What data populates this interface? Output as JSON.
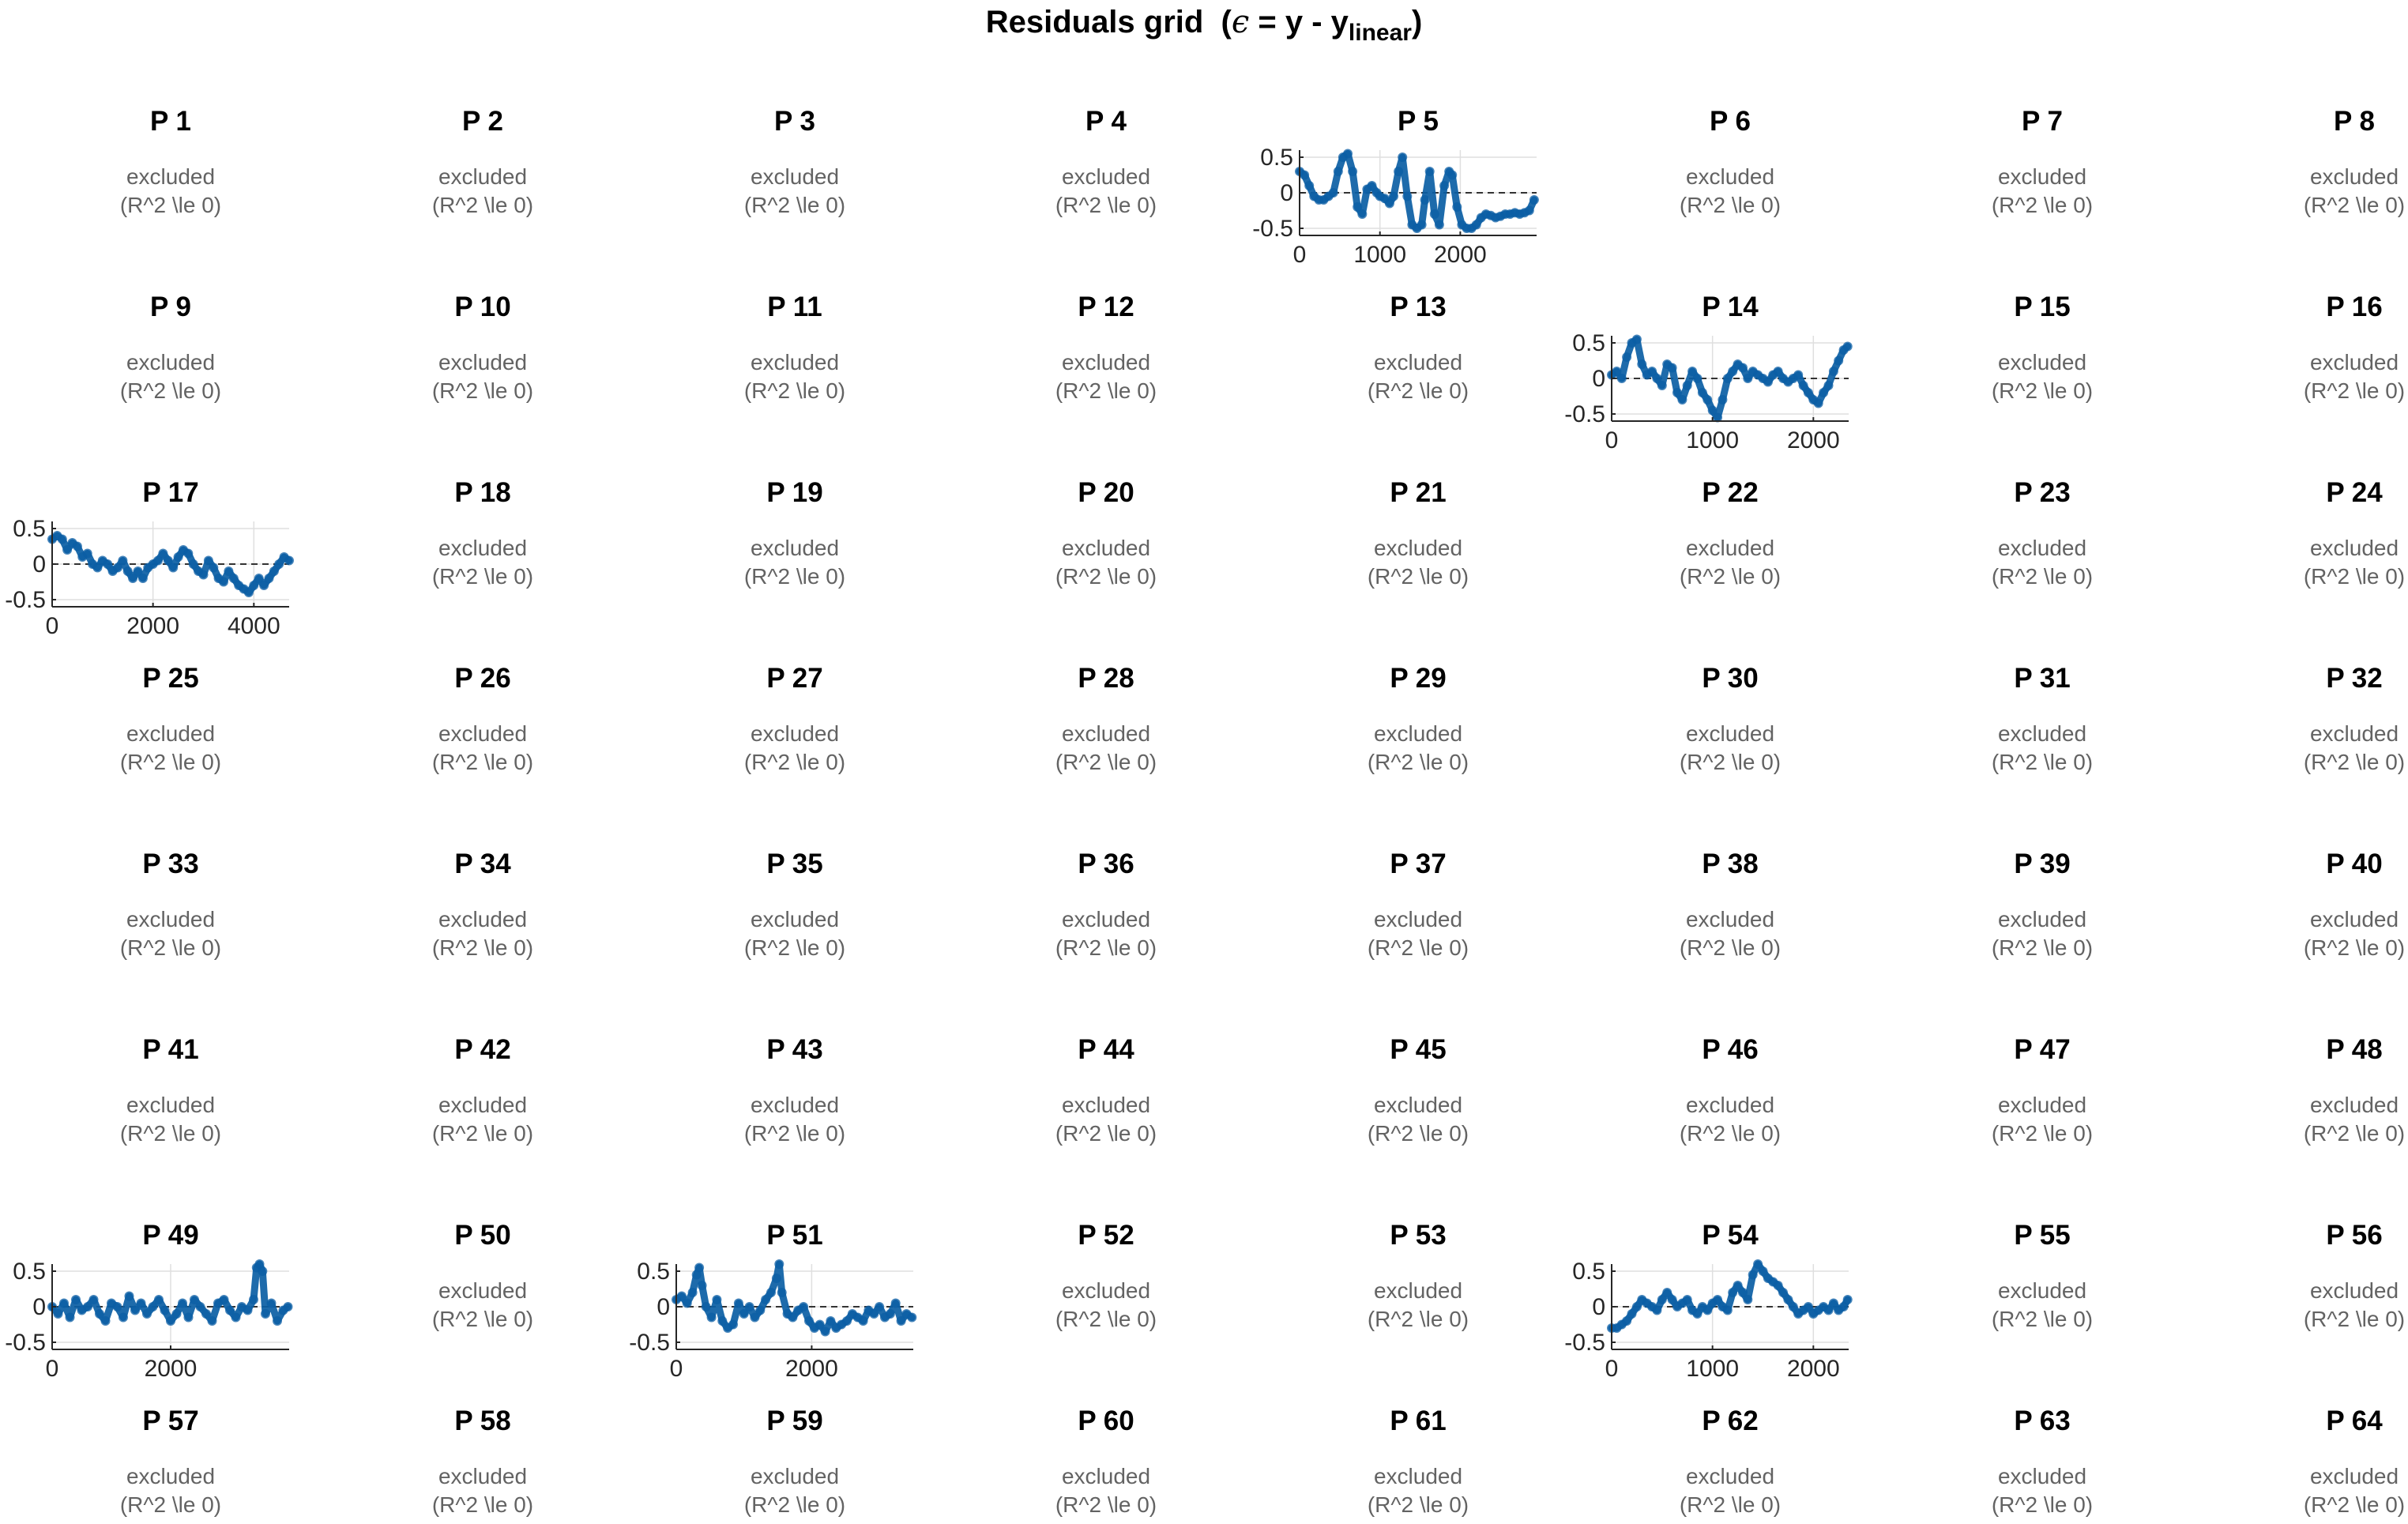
{
  "title": {
    "prefix": "Residuals grid",
    "symbol": "ϵ",
    "middle": " = y - y",
    "subscript": "linear",
    "suffix": ")"
  },
  "excluded_text": {
    "line1": "excluded",
    "line2": "(R^2 \\le 0)"
  },
  "colors": {
    "series": "#0b5ea4",
    "axis": "#262626",
    "grid": "#dfdfdf",
    "zero_line": "#333333",
    "excluded_text": "#636363"
  },
  "grid": {
    "rows": 8,
    "cols": 8
  },
  "panels": [
    {
      "label": "P 1",
      "excluded": true
    },
    {
      "label": "P 2",
      "excluded": true
    },
    {
      "label": "P 3",
      "excluded": true
    },
    {
      "label": "P 4",
      "excluded": true
    },
    {
      "label": "P 5",
      "excluded": false
    },
    {
      "label": "P 6",
      "excluded": true
    },
    {
      "label": "P 7",
      "excluded": true
    },
    {
      "label": "P 8",
      "excluded": true
    },
    {
      "label": "P 9",
      "excluded": true
    },
    {
      "label": "P 10",
      "excluded": true
    },
    {
      "label": "P 11",
      "excluded": true
    },
    {
      "label": "P 12",
      "excluded": true
    },
    {
      "label": "P 13",
      "excluded": true
    },
    {
      "label": "P 14",
      "excluded": false
    },
    {
      "label": "P 15",
      "excluded": true
    },
    {
      "label": "P 16",
      "excluded": true
    },
    {
      "label": "P 17",
      "excluded": false
    },
    {
      "label": "P 18",
      "excluded": true
    },
    {
      "label": "P 19",
      "excluded": true
    },
    {
      "label": "P 20",
      "excluded": true
    },
    {
      "label": "P 21",
      "excluded": true
    },
    {
      "label": "P 22",
      "excluded": true
    },
    {
      "label": "P 23",
      "excluded": true
    },
    {
      "label": "P 24",
      "excluded": true
    },
    {
      "label": "P 25",
      "excluded": true
    },
    {
      "label": "P 26",
      "excluded": true
    },
    {
      "label": "P 27",
      "excluded": true
    },
    {
      "label": "P 28",
      "excluded": true
    },
    {
      "label": "P 29",
      "excluded": true
    },
    {
      "label": "P 30",
      "excluded": true
    },
    {
      "label": "P 31",
      "excluded": true
    },
    {
      "label": "P 32",
      "excluded": true
    },
    {
      "label": "P 33",
      "excluded": true
    },
    {
      "label": "P 34",
      "excluded": true
    },
    {
      "label": "P 35",
      "excluded": true
    },
    {
      "label": "P 36",
      "excluded": true
    },
    {
      "label": "P 37",
      "excluded": true
    },
    {
      "label": "P 38",
      "excluded": true
    },
    {
      "label": "P 39",
      "excluded": true
    },
    {
      "label": "P 40",
      "excluded": true
    },
    {
      "label": "P 41",
      "excluded": true
    },
    {
      "label": "P 42",
      "excluded": true
    },
    {
      "label": "P 43",
      "excluded": true
    },
    {
      "label": "P 44",
      "excluded": true
    },
    {
      "label": "P 45",
      "excluded": true
    },
    {
      "label": "P 46",
      "excluded": true
    },
    {
      "label": "P 47",
      "excluded": true
    },
    {
      "label": "P 48",
      "excluded": true
    },
    {
      "label": "P 49",
      "excluded": false
    },
    {
      "label": "P 50",
      "excluded": true
    },
    {
      "label": "P 51",
      "excluded": false
    },
    {
      "label": "P 52",
      "excluded": true
    },
    {
      "label": "P 53",
      "excluded": true
    },
    {
      "label": "P 54",
      "excluded": false
    },
    {
      "label": "P 55",
      "excluded": true
    },
    {
      "label": "P 56",
      "excluded": true
    },
    {
      "label": "P 57",
      "excluded": true
    },
    {
      "label": "P 58",
      "excluded": true
    },
    {
      "label": "P 59",
      "excluded": true
    },
    {
      "label": "P 60",
      "excluded": true
    },
    {
      "label": "P 61",
      "excluded": true
    },
    {
      "label": "P 62",
      "excluded": true
    },
    {
      "label": "P 63",
      "excluded": true
    },
    {
      "label": "P 64",
      "excluded": true
    }
  ],
  "chart_data": [
    {
      "type": "scatter",
      "panel": "P 5",
      "xlim": [
        0,
        2950
      ],
      "ylim": [
        -0.6,
        0.6
      ],
      "xticks": [
        0,
        1000,
        2000
      ],
      "xtick_labels": [
        "0",
        "1000",
        "2000"
      ],
      "yticks": [
        0.5,
        0,
        -0.5
      ],
      "ytick_labels": [
        "0.5",
        "0",
        "-0.5"
      ],
      "zero_line": true,
      "grid": true,
      "series": [
        {
          "x": [
            0,
            60,
            120,
            180,
            240,
            300,
            360,
            420,
            480,
            540,
            600,
            660,
            720,
            780,
            840,
            900,
            960,
            1000,
            1060,
            1120,
            1170,
            1230,
            1280,
            1340,
            1400,
            1460,
            1520,
            1560,
            1620,
            1680,
            1740,
            1800,
            1860,
            1900,
            1960,
            2020,
            2080,
            2140,
            2200,
            2260,
            2320,
            2380,
            2440,
            2500,
            2560,
            2620,
            2680,
            2740,
            2800,
            2860,
            2920
          ],
          "y": [
            0.3,
            0.25,
            0.1,
            -0.05,
            -0.1,
            -0.1,
            -0.05,
            0.0,
            0.3,
            0.5,
            0.55,
            0.3,
            -0.2,
            -0.3,
            0.05,
            0.1,
            0.0,
            -0.05,
            -0.08,
            -0.15,
            -0.05,
            0.3,
            0.5,
            -0.05,
            -0.45,
            -0.5,
            -0.45,
            -0.1,
            0.3,
            -0.3,
            -0.45,
            0.1,
            0.3,
            0.25,
            -0.2,
            -0.45,
            -0.5,
            -0.5,
            -0.45,
            -0.35,
            -0.3,
            -0.32,
            -0.35,
            -0.33,
            -0.3,
            -0.3,
            -0.28,
            -0.3,
            -0.28,
            -0.25,
            -0.1
          ]
        }
      ]
    },
    {
      "type": "scatter",
      "panel": "P 14",
      "xlim": [
        0,
        2350
      ],
      "ylim": [
        -0.6,
        0.6
      ],
      "xticks": [
        0,
        1000,
        2000
      ],
      "xtick_labels": [
        "0",
        "1000",
        "2000"
      ],
      "yticks": [
        0.5,
        0,
        -0.5
      ],
      "ytick_labels": [
        "0.5",
        "0",
        "-0.5"
      ],
      "zero_line": true,
      "grid": true,
      "series": [
        {
          "x": [
            0,
            50,
            100,
            150,
            200,
            250,
            300,
            350,
            400,
            450,
            500,
            550,
            600,
            650,
            700,
            750,
            800,
            850,
            900,
            950,
            1000,
            1050,
            1100,
            1150,
            1200,
            1250,
            1300,
            1350,
            1400,
            1450,
            1500,
            1550,
            1600,
            1650,
            1700,
            1750,
            1800,
            1850,
            1900,
            1950,
            2000,
            2050,
            2100,
            2150,
            2200,
            2250,
            2300,
            2340
          ],
          "y": [
            0.05,
            0.1,
            0.0,
            0.3,
            0.5,
            0.55,
            0.2,
            0.05,
            0.1,
            0.0,
            -0.1,
            0.2,
            0.15,
            -0.2,
            -0.3,
            -0.1,
            0.1,
            0.0,
            -0.2,
            -0.3,
            -0.45,
            -0.55,
            -0.3,
            0.0,
            0.1,
            0.2,
            0.15,
            0.0,
            0.1,
            0.05,
            0.0,
            -0.05,
            0.05,
            0.1,
            0.0,
            -0.05,
            0.0,
            0.05,
            -0.1,
            -0.2,
            -0.3,
            -0.35,
            -0.2,
            -0.1,
            0.1,
            0.25,
            0.4,
            0.45
          ]
        }
      ]
    },
    {
      "type": "scatter",
      "panel": "P 17",
      "xlim": [
        0,
        4700
      ],
      "ylim": [
        -0.6,
        0.6
      ],
      "xticks": [
        0,
        2000,
        4000
      ],
      "xtick_labels": [
        "0",
        "2000",
        "4000"
      ],
      "yticks": [
        0.5,
        0,
        -0.5
      ],
      "ytick_labels": [
        "0.5",
        "0",
        "-0.5"
      ],
      "zero_line": true,
      "grid": true,
      "series": [
        {
          "x": [
            0,
            100,
            200,
            300,
            400,
            500,
            600,
            700,
            800,
            900,
            1000,
            1100,
            1200,
            1300,
            1400,
            1500,
            1600,
            1700,
            1800,
            1900,
            2000,
            2100,
            2200,
            2300,
            2400,
            2500,
            2600,
            2700,
            2800,
            2900,
            3000,
            3100,
            3200,
            3300,
            3400,
            3500,
            3600,
            3700,
            3800,
            3900,
            4000,
            4100,
            4200,
            4300,
            4400,
            4500,
            4600,
            4700
          ],
          "y": [
            0.35,
            0.4,
            0.35,
            0.2,
            0.3,
            0.25,
            0.1,
            0.15,
            0.0,
            -0.05,
            0.05,
            0.0,
            -0.1,
            -0.05,
            0.05,
            -0.1,
            -0.2,
            -0.1,
            -0.2,
            -0.05,
            0.0,
            0.05,
            0.15,
            0.05,
            -0.05,
            0.1,
            0.2,
            0.15,
            0.0,
            -0.1,
            -0.15,
            0.05,
            -0.05,
            -0.2,
            -0.25,
            -0.1,
            -0.2,
            -0.3,
            -0.35,
            -0.4,
            -0.3,
            -0.2,
            -0.3,
            -0.2,
            -0.1,
            0.0,
            0.1,
            0.05
          ]
        }
      ]
    },
    {
      "type": "scatter",
      "panel": "P 49",
      "xlim": [
        0,
        4000
      ],
      "ylim": [
        -0.6,
        0.6
      ],
      "xticks": [
        0,
        2000
      ],
      "xtick_labels": [
        "0",
        "2000"
      ],
      "yticks": [
        0.5,
        0,
        -0.5
      ],
      "ytick_labels": [
        "0.5",
        "0",
        "-0.5"
      ],
      "zero_line": true,
      "grid": true,
      "series": [
        {
          "x": [
            0,
            100,
            200,
            300,
            400,
            500,
            600,
            700,
            800,
            900,
            1000,
            1100,
            1200,
            1300,
            1400,
            1500,
            1600,
            1700,
            1800,
            1900,
            2000,
            2100,
            2200,
            2300,
            2400,
            2500,
            2600,
            2700,
            2800,
            2900,
            3000,
            3100,
            3200,
            3300,
            3400,
            3450,
            3500,
            3550,
            3600,
            3700,
            3800,
            3900,
            3980
          ],
          "y": [
            0.0,
            -0.1,
            0.05,
            -0.15,
            0.1,
            -0.05,
            0.0,
            0.1,
            -0.1,
            -0.2,
            0.05,
            0.0,
            -0.15,
            0.15,
            -0.05,
            0.05,
            -0.1,
            0.0,
            0.1,
            -0.05,
            -0.2,
            -0.1,
            0.05,
            -0.15,
            0.1,
            0.0,
            -0.1,
            -0.2,
            0.05,
            0.1,
            -0.05,
            -0.15,
            0.0,
            -0.05,
            0.1,
            0.55,
            0.6,
            0.5,
            -0.1,
            0.05,
            -0.2,
            -0.05,
            0.0
          ]
        }
      ]
    },
    {
      "type": "scatter",
      "panel": "P 51",
      "xlim": [
        0,
        3500
      ],
      "ylim": [
        -0.6,
        0.6
      ],
      "xticks": [
        0,
        2000
      ],
      "xtick_labels": [
        "0",
        "2000"
      ],
      "yticks": [
        0.5,
        0,
        -0.5
      ],
      "ytick_labels": [
        "0.5",
        "0",
        "-0.5"
      ],
      "zero_line": true,
      "grid": true,
      "series": [
        {
          "x": [
            0,
            80,
            160,
            240,
            300,
            340,
            380,
            440,
            520,
            600,
            680,
            760,
            840,
            920,
            1000,
            1080,
            1160,
            1240,
            1320,
            1400,
            1480,
            1520,
            1560,
            1640,
            1720,
            1800,
            1880,
            1960,
            2040,
            2120,
            2200,
            2280,
            2360,
            2440,
            2520,
            2600,
            2680,
            2760,
            2840,
            2920,
            3000,
            3080,
            3160,
            3240,
            3320,
            3400,
            3480
          ],
          "y": [
            0.1,
            0.15,
            0.05,
            0.2,
            0.45,
            0.55,
            0.3,
            0.0,
            -0.15,
            0.1,
            -0.2,
            -0.3,
            -0.25,
            0.05,
            -0.1,
            0.0,
            -0.15,
            -0.05,
            0.1,
            0.2,
            0.4,
            0.6,
            0.2,
            -0.1,
            -0.15,
            -0.05,
            0.0,
            -0.2,
            -0.3,
            -0.25,
            -0.35,
            -0.2,
            -0.3,
            -0.25,
            -0.2,
            -0.1,
            -0.15,
            -0.2,
            -0.05,
            -0.1,
            0.0,
            -0.15,
            -0.1,
            0.05,
            -0.2,
            -0.1,
            -0.15
          ]
        }
      ]
    },
    {
      "type": "scatter",
      "panel": "P 54",
      "xlim": [
        0,
        2350
      ],
      "ylim": [
        -0.6,
        0.6
      ],
      "xticks": [
        0,
        1000,
        2000
      ],
      "xtick_labels": [
        "0",
        "1000",
        "2000"
      ],
      "yticks": [
        0.5,
        0,
        -0.5
      ],
      "ytick_labels": [
        "0.5",
        "0",
        "-0.5"
      ],
      "zero_line": true,
      "grid": true,
      "series": [
        {
          "x": [
            0,
            50,
            100,
            150,
            200,
            250,
            300,
            350,
            400,
            450,
            500,
            550,
            600,
            650,
            700,
            750,
            800,
            850,
            900,
            950,
            1000,
            1050,
            1100,
            1150,
            1200,
            1250,
            1300,
            1350,
            1400,
            1450,
            1500,
            1550,
            1600,
            1650,
            1700,
            1750,
            1800,
            1850,
            1900,
            1950,
            2000,
            2050,
            2100,
            2150,
            2200,
            2250,
            2300,
            2340
          ],
          "y": [
            -0.3,
            -0.3,
            -0.25,
            -0.2,
            -0.1,
            0.0,
            0.1,
            0.05,
            0.0,
            -0.05,
            0.1,
            0.2,
            0.1,
            0.0,
            0.05,
            0.1,
            -0.05,
            -0.1,
            0.0,
            -0.05,
            0.05,
            0.1,
            0.0,
            -0.05,
            0.2,
            0.3,
            0.2,
            0.1,
            0.45,
            0.6,
            0.5,
            0.4,
            0.35,
            0.3,
            0.2,
            0.1,
            0.0,
            -0.1,
            -0.05,
            0.0,
            -0.1,
            -0.05,
            0.0,
            -0.05,
            0.05,
            -0.05,
            0.0,
            0.1
          ]
        }
      ]
    }
  ]
}
